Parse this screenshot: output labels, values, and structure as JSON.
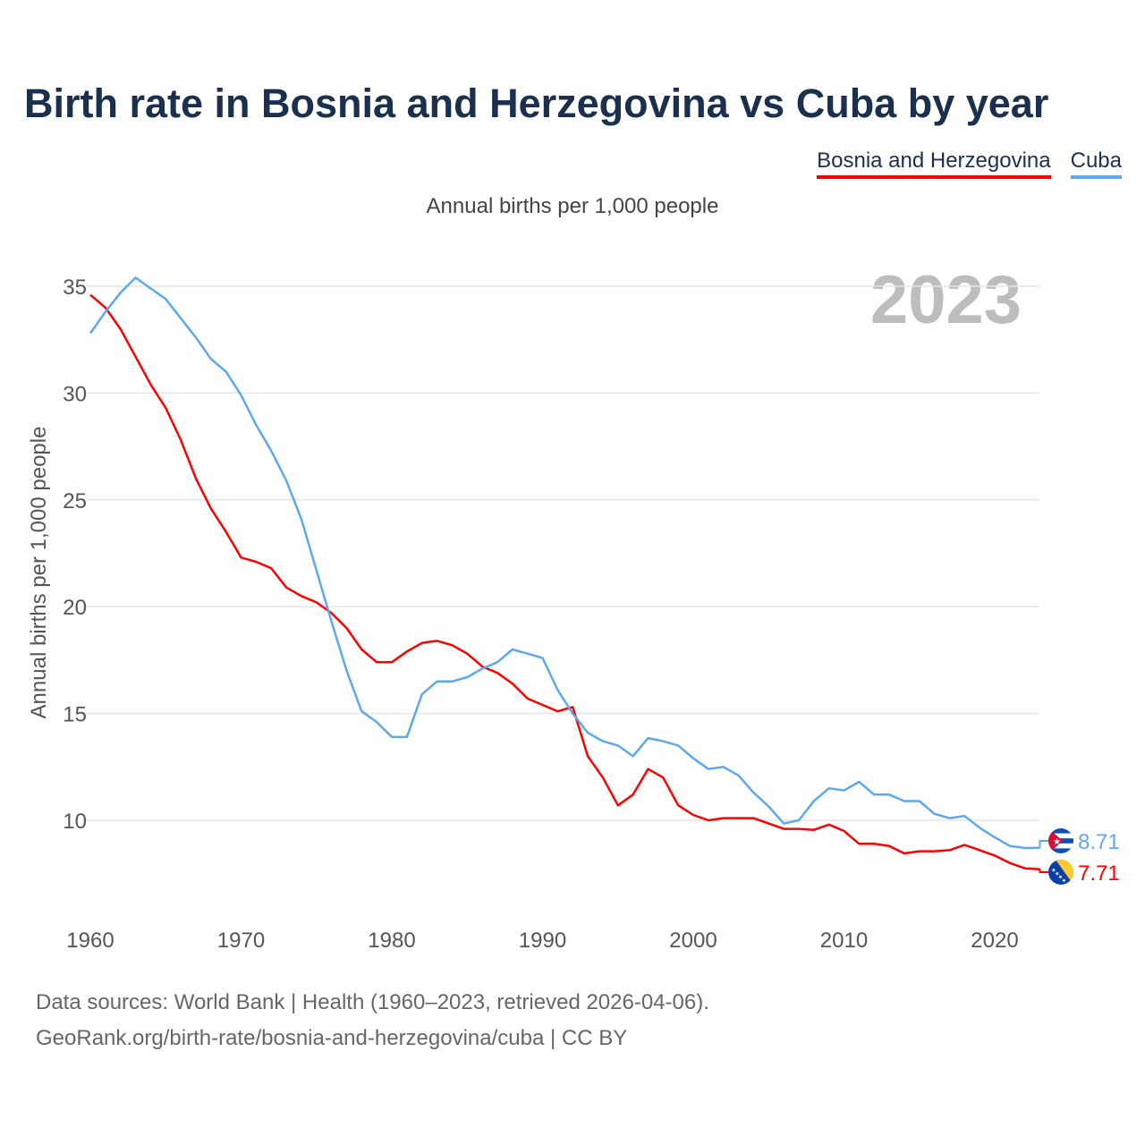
{
  "chart_data": {
    "type": "line",
    "title": "Birth rate in Bosnia and Herzegovina vs Cuba by year",
    "subtitle": "Annual births per 1,000 people",
    "ylabel": "Annual births per 1,000 people",
    "xlabel": "",
    "highlight_year": "2023",
    "xlim": [
      1960,
      2023
    ],
    "ylim": [
      6,
      36
    ],
    "x_ticks": [
      1960,
      1970,
      1980,
      1990,
      2000,
      2010,
      2020
    ],
    "y_ticks": [
      10,
      15,
      20,
      25,
      30,
      35
    ],
    "grid": true,
    "legend_position": "top-right",
    "x": [
      1960,
      1961,
      1962,
      1963,
      1964,
      1965,
      1966,
      1967,
      1968,
      1969,
      1970,
      1971,
      1972,
      1973,
      1974,
      1975,
      1976,
      1977,
      1978,
      1979,
      1980,
      1981,
      1982,
      1983,
      1984,
      1985,
      1986,
      1987,
      1988,
      1989,
      1990,
      1991,
      1992,
      1993,
      1994,
      1995,
      1996,
      1997,
      1998,
      1999,
      2000,
      2001,
      2002,
      2003,
      2004,
      2005,
      2006,
      2007,
      2008,
      2009,
      2010,
      2011,
      2012,
      2013,
      2014,
      2015,
      2016,
      2017,
      2018,
      2019,
      2020,
      2021,
      2022,
      2023
    ],
    "series": [
      {
        "name": "Bosnia and Herzegovina",
        "color": "#ff0000",
        "end_label": "7.71",
        "values": [
          34.6,
          34.0,
          33.0,
          31.7,
          30.4,
          29.3,
          27.8,
          26.0,
          24.6,
          23.5,
          22.3,
          22.1,
          21.8,
          20.9,
          20.5,
          20.2,
          19.7,
          19.0,
          18.0,
          17.4,
          17.4,
          17.9,
          18.3,
          18.4,
          18.2,
          17.8,
          17.2,
          16.9,
          16.4,
          15.7,
          15.4,
          15.1,
          15.3,
          13.0,
          12.0,
          10.7,
          11.2,
          12.4,
          12.0,
          10.7,
          10.25,
          10.0,
          10.1,
          10.1,
          10.1,
          9.85,
          9.6,
          9.6,
          9.55,
          9.8,
          9.5,
          8.9,
          8.9,
          8.8,
          8.45,
          8.55,
          8.55,
          8.6,
          8.85,
          8.6,
          8.35,
          8.0,
          7.75,
          7.71
        ]
      },
      {
        "name": "Cuba",
        "color": "#5ea8ee",
        "end_label": "8.71",
        "values": [
          32.8,
          33.8,
          34.7,
          35.4,
          34.9,
          34.4,
          33.5,
          32.6,
          31.6,
          31.0,
          29.9,
          28.5,
          27.3,
          25.9,
          24.1,
          21.7,
          19.3,
          17.0,
          15.1,
          14.6,
          13.9,
          13.9,
          15.9,
          16.5,
          16.5,
          16.7,
          17.1,
          17.4,
          18.0,
          17.8,
          17.6,
          16.1,
          15.0,
          14.1,
          13.7,
          13.5,
          13.0,
          13.85,
          13.7,
          13.5,
          12.9,
          12.4,
          12.5,
          12.1,
          11.3,
          10.65,
          9.85,
          10.0,
          10.9,
          11.5,
          11.4,
          11.8,
          11.2,
          11.2,
          10.9,
          10.9,
          10.3,
          10.1,
          10.2,
          9.65,
          9.2,
          8.8,
          8.7,
          8.71
        ]
      }
    ]
  },
  "footer": {
    "line1": "Data sources: World Bank | Health (1960–2023, retrieved 2026-04-06).",
    "line2": "GeoRank.org/birth-rate/bosnia-and-herzegovina/cuba | CC BY"
  }
}
